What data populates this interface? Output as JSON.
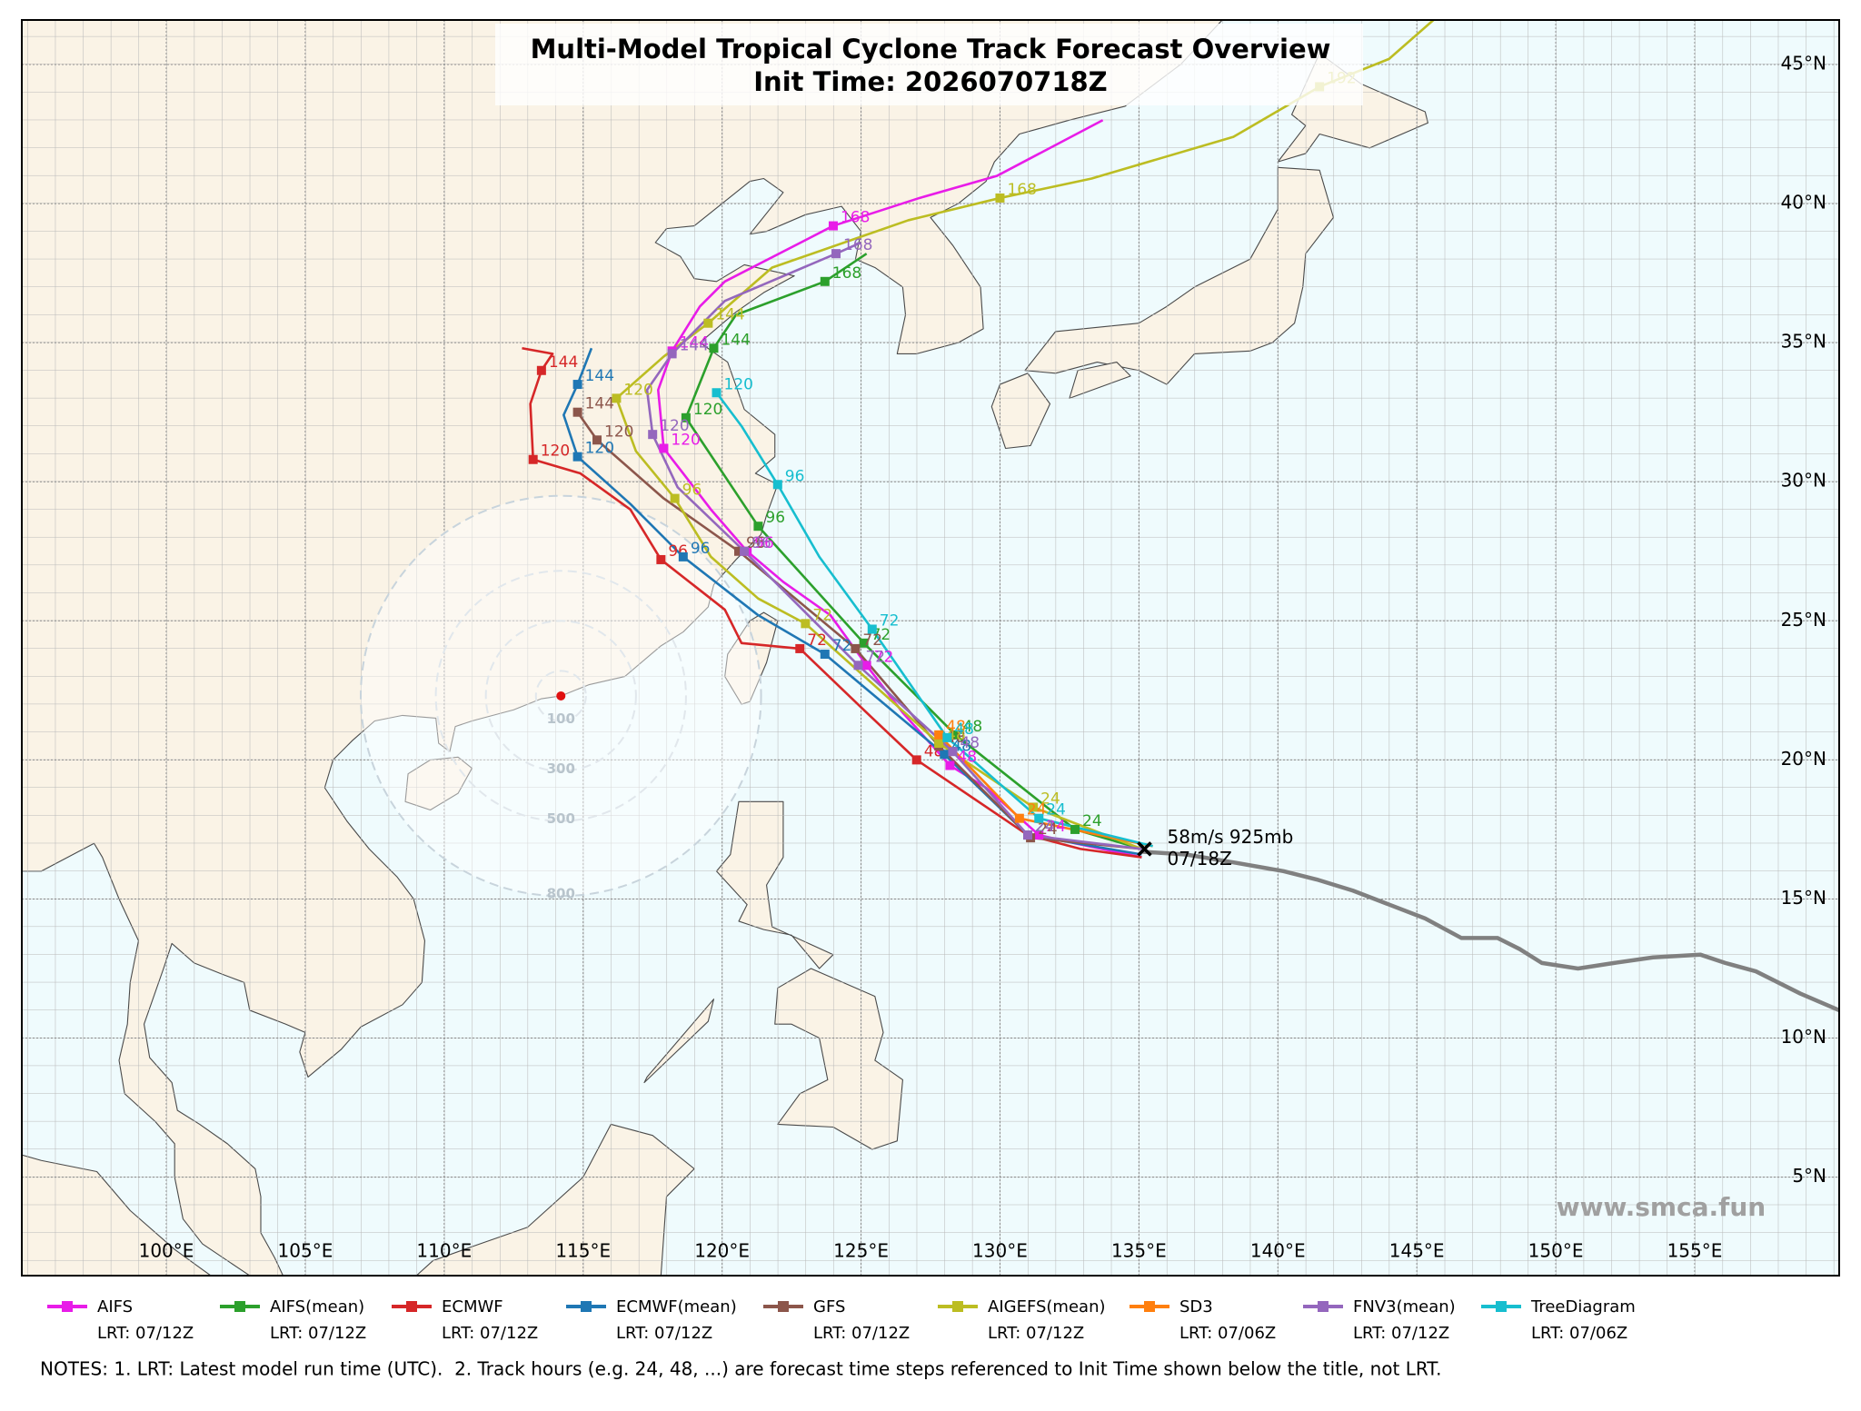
{
  "chart_data": {
    "type": "track_map",
    "title": "Multi-Model Tropical Cyclone Track Forecast Overview",
    "subtitle": "Init Time: 2026070718Z",
    "xlim": [
      94.8,
      160.2
    ],
    "ylim": [
      1.46,
      46.6
    ],
    "xticks": [
      {
        "value": 100,
        "label": "100°E"
      },
      {
        "value": 105,
        "label": "105°E"
      },
      {
        "value": 110,
        "label": "110°E"
      },
      {
        "value": 115,
        "label": "115°E"
      },
      {
        "value": 120,
        "label": "120°E"
      },
      {
        "value": 125,
        "label": "125°E"
      },
      {
        "value": 130,
        "label": "130°E"
      },
      {
        "value": 135,
        "label": "135°E"
      },
      {
        "value": 140,
        "label": "140°E"
      },
      {
        "value": 145,
        "label": "145°E"
      },
      {
        "value": 150,
        "label": "150°E"
      },
      {
        "value": 155,
        "label": "155°E"
      }
    ],
    "yticks": [
      {
        "value": 5,
        "label": "5°N"
      },
      {
        "value": 10,
        "label": "10°N"
      },
      {
        "value": 15,
        "label": "15°N"
      },
      {
        "value": 20,
        "label": "20°N"
      },
      {
        "value": 25,
        "label": "25°N"
      },
      {
        "value": 30,
        "label": "30°N"
      },
      {
        "value": 35,
        "label": "35°N"
      },
      {
        "value": 40,
        "label": "40°N"
      },
      {
        "value": 45,
        "label": "45°N"
      }
    ],
    "grid": true,
    "series": [
      {
        "name": "AIFS",
        "color": "#e81ce8",
        "lrt": "LRT: 07/12Z",
        "x": [
          135.1,
          132.7,
          131.4,
          129.5,
          128.2,
          126.5,
          125.2,
          123.9,
          122.2,
          120.9,
          119.6,
          118.6,
          117.9,
          117.7,
          118.2,
          119.2,
          120.1,
          124.0,
          127.1,
          129.9,
          133.7
        ],
        "values": [
          16.5,
          17.0,
          17.3,
          19.0,
          19.8,
          21.7,
          23.4,
          25.2,
          26.4,
          27.5,
          29.0,
          30.3,
          31.2,
          33.3,
          34.7,
          36.3,
          37.2,
          39.2,
          40.2,
          41.0,
          43.0
        ],
        "hours": [
          null,
          null,
          24,
          null,
          48,
          null,
          72,
          null,
          null,
          96,
          null,
          null,
          120,
          null,
          144,
          null,
          null,
          168,
          null,
          null,
          null
        ]
      },
      {
        "name": "AIFS(mean)",
        "color": "#2ca02c",
        "lrt": "LRT: 07/12Z",
        "x": [
          135.1,
          132.7,
          128.4,
          125.1,
          121.3,
          118.7,
          119.7,
          120.5,
          123.7,
          125.2
        ],
        "values": [
          16.8,
          17.5,
          20.9,
          24.2,
          28.4,
          32.3,
          34.8,
          36.0,
          37.2,
          38.2
        ],
        "hours": [
          null,
          24,
          48,
          72,
          96,
          120,
          144,
          null,
          168,
          null
        ]
      },
      {
        "name": "ECMWF",
        "color": "#d62728",
        "lrt": "LRT: 07/12Z",
        "x": [
          135.1,
          132.9,
          131.0,
          127.0,
          125.2,
          122.8,
          120.7,
          120.1,
          117.8,
          116.7,
          114.9,
          113.2,
          113.1,
          113.5,
          113.9,
          112.8
        ],
        "values": [
          16.5,
          16.8,
          17.3,
          20.0,
          21.7,
          24.0,
          24.2,
          25.4,
          27.2,
          29.0,
          30.3,
          30.8,
          32.8,
          34.0,
          34.6,
          34.8
        ],
        "hours": [
          null,
          null,
          24,
          48,
          null,
          72,
          null,
          null,
          96,
          null,
          null,
          120,
          null,
          144,
          null,
          null
        ]
      },
      {
        "name": "ECMWF(mean)",
        "color": "#1f77b4",
        "lrt": "LRT: 07/12Z",
        "x": [
          135.1,
          131.0,
          128.0,
          123.7,
          121.3,
          118.6,
          116.7,
          114.8,
          114.3,
          114.8,
          115.3
        ],
        "values": [
          16.6,
          17.3,
          20.2,
          23.8,
          25.2,
          27.3,
          29.2,
          30.9,
          32.4,
          33.5,
          34.8
        ],
        "hours": [
          null,
          24,
          48,
          72,
          null,
          96,
          null,
          120,
          null,
          144,
          null
        ]
      },
      {
        "name": "GFS",
        "color": "#8c564b",
        "lrt": "LRT: 07/12Z",
        "x": [
          135.1,
          131.1,
          127.8,
          124.8,
          120.6,
          117.9,
          115.5,
          114.8
        ],
        "values": [
          16.8,
          17.2,
          20.5,
          24.0,
          27.5,
          29.4,
          31.5,
          32.5
        ],
        "hours": [
          null,
          24,
          48,
          72,
          96,
          null,
          120,
          144
        ]
      },
      {
        "name": "AIGEFS(mean)",
        "color": "#bcbd22",
        "lrt": "LRT: 07/12Z",
        "x": [
          135.1,
          131.2,
          127.8,
          123.0,
          121.3,
          119.6,
          118.3,
          116.9,
          116.2,
          117.9,
          119.5,
          121.8,
          126.7,
          130.0,
          133.3,
          138.4,
          141.5,
          144.0,
          145.6
        ],
        "values": [
          16.8,
          18.3,
          20.6,
          24.9,
          25.8,
          27.3,
          29.4,
          31.1,
          33.0,
          34.5,
          35.7,
          37.7,
          39.4,
          40.2,
          40.9,
          42.4,
          44.2,
          45.2,
          46.6
        ],
        "hours": [
          null,
          24,
          48,
          72,
          null,
          null,
          96,
          null,
          120,
          null,
          144,
          null,
          null,
          168,
          null,
          null,
          192,
          null,
          null
        ]
      },
      {
        "name": "SD3",
        "color": "#ff7f0e",
        "lrt": "LRT: 07/06Z",
        "x": [
          135.5,
          130.7,
          127.8
        ],
        "values": [
          16.9,
          17.9,
          20.9
        ],
        "hours": [
          null,
          24,
          48
        ]
      },
      {
        "name": "FNV3(mean)",
        "color": "#9467bd",
        "lrt": "LRT: 07/12Z",
        "x": [
          135.1,
          131.0,
          128.3,
          124.9,
          120.8,
          118.4,
          117.5,
          117.3,
          118.2,
          120.1,
          124.1,
          125.0
        ],
        "values": [
          16.8,
          17.3,
          20.3,
          23.4,
          27.5,
          29.8,
          31.7,
          33.3,
          34.6,
          36.5,
          38.2,
          38.6
        ],
        "hours": [
          null,
          24,
          48,
          72,
          96,
          null,
          120,
          null,
          144,
          null,
          168,
          null
        ]
      },
      {
        "name": "TreeDiagram",
        "color": "#17becf",
        "lrt": "LRT: 07/06Z",
        "x": [
          135.5,
          131.4,
          128.1,
          125.4,
          123.5,
          122.0,
          120.7,
          119.8
        ],
        "values": [
          16.9,
          17.9,
          20.8,
          24.7,
          27.3,
          29.9,
          32.0,
          33.2
        ],
        "hours": [
          null,
          24,
          48,
          72,
          null,
          96,
          null,
          120
        ]
      }
    ],
    "observed": {
      "color": "#808080",
      "x": [
        160.2,
        158.8,
        157.2,
        156.1,
        155.2,
        153.5,
        152.1,
        150.8,
        149.5,
        148.7,
        147.9,
        146.6,
        145.3,
        144.0,
        142.7,
        141.4,
        140.2,
        138.5,
        136.7,
        135.1
      ],
      "values": [
        11.0,
        11.6,
        12.4,
        12.7,
        13.0,
        12.9,
        12.7,
        12.5,
        12.7,
        13.2,
        13.6,
        13.6,
        14.3,
        14.8,
        15.3,
        15.7,
        16.0,
        16.3,
        16.6,
        16.7
      ]
    },
    "current": {
      "x": 135.2,
      "y": 16.8,
      "labels": [
        "58m/s 925mb",
        "07/18Z"
      ]
    },
    "reference": {
      "x": 114.2,
      "y": 22.3,
      "color": "#e01010",
      "rings": [
        100,
        300,
        500,
        800
      ]
    },
    "watermark": "www.smca.fun",
    "notes": "NOTES: 1. LRT: Latest model run time (UTC).  2. Track hours (e.g. 24, 48, ...) are forecast time steps referenced to Init Time shown below the title, not LRT."
  }
}
